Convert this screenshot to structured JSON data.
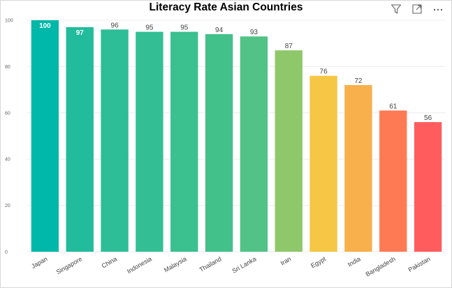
{
  "title": "Literacy Rate Asian Countries",
  "toolbar": {
    "icons": [
      "filter-icon",
      "focus-mode-icon",
      "more-options-icon"
    ]
  },
  "colors": {
    "grid": "#ececec",
    "tick_text": "#666666",
    "label_text": "#444444",
    "inside_label_text": "#ffffff"
  },
  "chart_data": {
    "type": "bar",
    "title": "Literacy Rate Asian Countries",
    "xlabel": "",
    "ylabel": "",
    "ylim": [
      0,
      100
    ],
    "yticks": [
      0,
      20,
      40,
      60,
      80,
      100
    ],
    "grid": true,
    "categories": [
      "Japan",
      "Singapore",
      "China",
      "Indonesia",
      "Malaysia",
      "Thailand",
      "Sri Lanka",
      "Iran",
      "Egypt",
      "India",
      "Bangladesh",
      "Pakistan"
    ],
    "values": [
      100,
      97,
      96,
      95,
      95,
      94,
      93,
      87,
      76,
      72,
      61,
      56
    ],
    "bar_colors": [
      "#00b8a9",
      "#22bc9d",
      "#2dbd97",
      "#33bf93",
      "#3bc08f",
      "#43c18b",
      "#52c287",
      "#8fc86b",
      "#f6c745",
      "#f8b04c",
      "#fe7a55",
      "#ff5d5d"
    ],
    "label_inside": [
      true,
      true,
      false,
      false,
      false,
      false,
      false,
      false,
      false,
      false,
      false,
      false
    ]
  }
}
